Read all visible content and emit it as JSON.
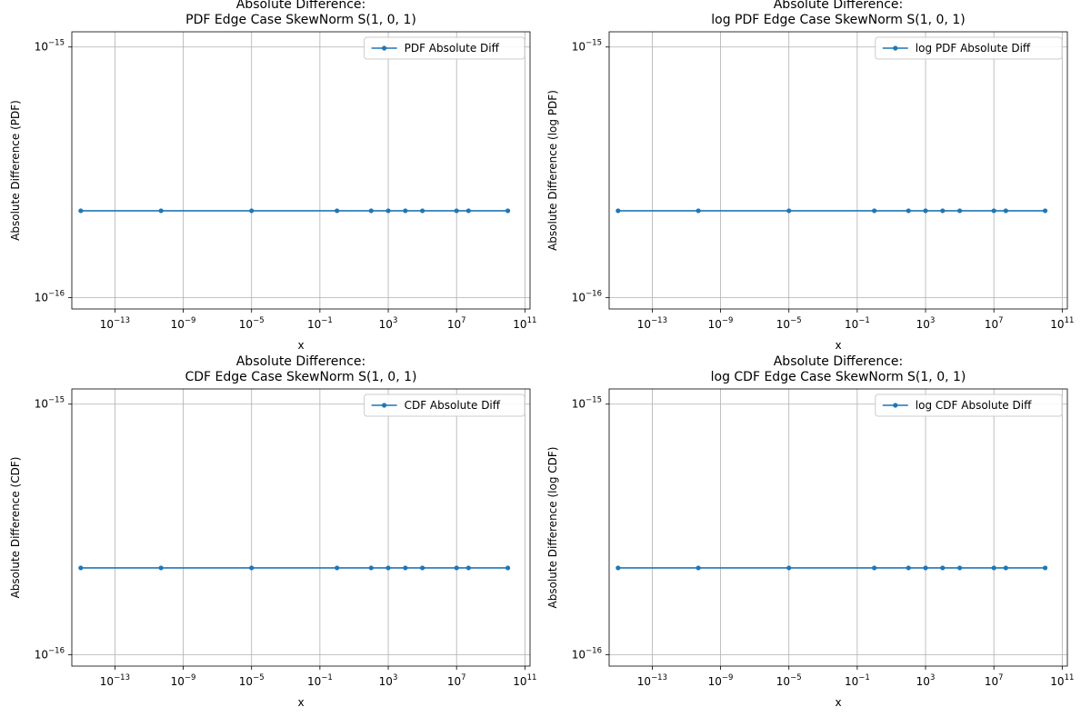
{
  "colors": {
    "series": "#1f77b4",
    "grid": "#b0b0b0",
    "axis": "#000000",
    "legend_border": "#cccccc"
  },
  "chart_data": [
    {
      "type": "line",
      "title": "Absolute Difference:\nPDF Edge Case SkewNorm S(1, 0, 1)",
      "xlabel": "x",
      "ylabel": "Absolute Difference (PDF)",
      "xscale": "log",
      "yscale": "log",
      "xlim": [
        3e-16,
        200000000000.0
      ],
      "ylim": [
        9e-17,
        1.15e-15
      ],
      "xticks": [
        {
          "value": 1e-13,
          "base": "10",
          "exp": "−13"
        },
        {
          "value": 1e-09,
          "base": "10",
          "exp": "−9"
        },
        {
          "value": 1e-05,
          "base": "10",
          "exp": "−5"
        },
        {
          "value": 0.1,
          "base": "10",
          "exp": "−1"
        },
        {
          "value": 1000,
          "base": "10",
          "exp": "3"
        },
        {
          "value": 10000000.0,
          "base": "10",
          "exp": "7"
        },
        {
          "value": 100000000000.0,
          "base": "10",
          "exp": "11"
        }
      ],
      "yticks": [
        {
          "value": 1e-16,
          "base": "10",
          "exp": "−16"
        },
        {
          "value": 1e-15,
          "base": "10",
          "exp": "−15"
        }
      ],
      "grid": true,
      "legend_position": "upper right",
      "series": [
        {
          "name": "PDF Absolute Diff",
          "marker": "circle",
          "x": [
            1e-15,
            5e-11,
            1e-05,
            1,
            100,
            1000,
            10000,
            100000,
            10000000.0,
            50000000.0,
            10000000000.0
          ],
          "y": [
            2.22e-16,
            2.22e-16,
            2.22e-16,
            2.22e-16,
            2.22e-16,
            2.22e-16,
            2.22e-16,
            2.22e-16,
            2.22e-16,
            2.22e-16,
            2.22e-16
          ]
        }
      ]
    },
    {
      "type": "line",
      "title": "Absolute Difference:\nlog PDF Edge Case SkewNorm S(1, 0, 1)",
      "xlabel": "x",
      "ylabel": "Absolute Difference (log PDF)",
      "xscale": "log",
      "yscale": "log",
      "xlim": [
        3e-16,
        200000000000.0
      ],
      "ylim": [
        9e-17,
        1.15e-15
      ],
      "xticks": [
        {
          "value": 1e-13,
          "base": "10",
          "exp": "−13"
        },
        {
          "value": 1e-09,
          "base": "10",
          "exp": "−9"
        },
        {
          "value": 1e-05,
          "base": "10",
          "exp": "−5"
        },
        {
          "value": 0.1,
          "base": "10",
          "exp": "−1"
        },
        {
          "value": 1000,
          "base": "10",
          "exp": "3"
        },
        {
          "value": 10000000.0,
          "base": "10",
          "exp": "7"
        },
        {
          "value": 100000000000.0,
          "base": "10",
          "exp": "11"
        }
      ],
      "yticks": [
        {
          "value": 1e-16,
          "base": "10",
          "exp": "−16"
        },
        {
          "value": 1e-15,
          "base": "10",
          "exp": "−15"
        }
      ],
      "grid": true,
      "legend_position": "upper right",
      "series": [
        {
          "name": "log PDF Absolute Diff",
          "marker": "circle",
          "x": [
            1e-15,
            5e-11,
            1e-05,
            1,
            100,
            1000,
            10000,
            100000,
            10000000.0,
            50000000.0,
            10000000000.0
          ],
          "y": [
            2.22e-16,
            2.22e-16,
            2.22e-16,
            2.22e-16,
            2.22e-16,
            2.22e-16,
            2.22e-16,
            2.22e-16,
            2.22e-16,
            2.22e-16,
            2.22e-16
          ]
        }
      ]
    },
    {
      "type": "line",
      "title": "Absolute Difference:\nCDF Edge Case SkewNorm S(1, 0, 1)",
      "xlabel": "x",
      "ylabel": "Absolute Difference (CDF)",
      "xscale": "log",
      "yscale": "log",
      "xlim": [
        3e-16,
        200000000000.0
      ],
      "ylim": [
        9e-17,
        1.15e-15
      ],
      "xticks": [
        {
          "value": 1e-13,
          "base": "10",
          "exp": "−13"
        },
        {
          "value": 1e-09,
          "base": "10",
          "exp": "−9"
        },
        {
          "value": 1e-05,
          "base": "10",
          "exp": "−5"
        },
        {
          "value": 0.1,
          "base": "10",
          "exp": "−1"
        },
        {
          "value": 1000,
          "base": "10",
          "exp": "3"
        },
        {
          "value": 10000000.0,
          "base": "10",
          "exp": "7"
        },
        {
          "value": 100000000000.0,
          "base": "10",
          "exp": "11"
        }
      ],
      "yticks": [
        {
          "value": 1e-16,
          "base": "10",
          "exp": "−16"
        },
        {
          "value": 1e-15,
          "base": "10",
          "exp": "−15"
        }
      ],
      "grid": true,
      "legend_position": "upper right",
      "series": [
        {
          "name": "CDF Absolute Diff",
          "marker": "circle",
          "x": [
            1e-15,
            5e-11,
            1e-05,
            1,
            100,
            1000,
            10000,
            100000,
            10000000.0,
            50000000.0,
            10000000000.0
          ],
          "y": [
            2.22e-16,
            2.22e-16,
            2.22e-16,
            2.22e-16,
            2.22e-16,
            2.22e-16,
            2.22e-16,
            2.22e-16,
            2.22e-16,
            2.22e-16,
            2.22e-16
          ]
        }
      ]
    },
    {
      "type": "line",
      "title": "Absolute Difference:\nlog CDF Edge Case SkewNorm S(1, 0, 1)",
      "xlabel": "x",
      "ylabel": "Absolute Difference (log CDF)",
      "xscale": "log",
      "yscale": "log",
      "xlim": [
        3e-16,
        200000000000.0
      ],
      "ylim": [
        9e-17,
        1.15e-15
      ],
      "xticks": [
        {
          "value": 1e-13,
          "base": "10",
          "exp": "−13"
        },
        {
          "value": 1e-09,
          "base": "10",
          "exp": "−9"
        },
        {
          "value": 1e-05,
          "base": "10",
          "exp": "−5"
        },
        {
          "value": 0.1,
          "base": "10",
          "exp": "−1"
        },
        {
          "value": 1000,
          "base": "10",
          "exp": "3"
        },
        {
          "value": 10000000.0,
          "base": "10",
          "exp": "7"
        },
        {
          "value": 100000000000.0,
          "base": "10",
          "exp": "11"
        }
      ],
      "yticks": [
        {
          "value": 1e-16,
          "base": "10",
          "exp": "−16"
        },
        {
          "value": 1e-15,
          "base": "10",
          "exp": "−15"
        }
      ],
      "grid": true,
      "legend_position": "upper right",
      "series": [
        {
          "name": "log CDF Absolute Diff",
          "marker": "circle",
          "x": [
            1e-15,
            5e-11,
            1e-05,
            1,
            100,
            1000,
            10000,
            100000,
            10000000.0,
            50000000.0,
            10000000000.0
          ],
          "y": [
            2.22e-16,
            2.22e-16,
            2.22e-16,
            2.22e-16,
            2.22e-16,
            2.22e-16,
            2.22e-16,
            2.22e-16,
            2.22e-16,
            2.22e-16,
            2.22e-16
          ]
        }
      ]
    }
  ]
}
